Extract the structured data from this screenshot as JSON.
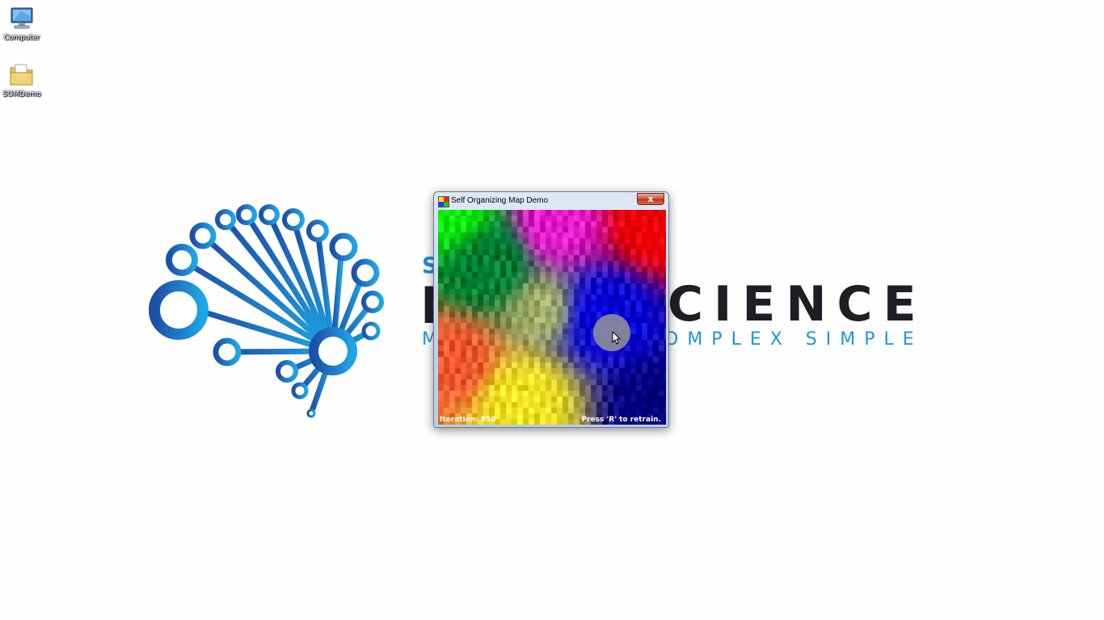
{
  "desktop": {
    "icons": [
      {
        "label": "Computer",
        "icon": "computer-icon"
      },
      {
        "label": "SOMDemo",
        "icon": "folder-icon"
      }
    ]
  },
  "wallpaper": {
    "wordmark_small": "S",
    "wordmark_big_left": "D",
    "wordmark_big_right": "CIENCE",
    "tagline_left": "M",
    "tagline_right": "OMPLEX SIMPLE",
    "colors": {
      "brand_blue": "#1b8fd6",
      "dark": "#1e1e24"
    }
  },
  "window": {
    "title": "Self Organizing Map Demo",
    "close_glyph": "x",
    "iteration_text": "Iteration: 950",
    "retrain_text": "Press 'R' to retrain."
  }
}
